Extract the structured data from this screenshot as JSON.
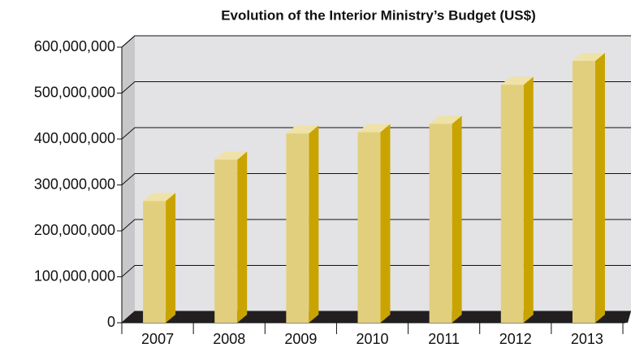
{
  "chart_data": {
    "type": "bar3d",
    "title": "Evolution of the Interior Ministry’s Budget (US$)",
    "categories": [
      "2007",
      "2008",
      "2009",
      "2010",
      "2011",
      "2012",
      "2013"
    ],
    "values": [
      265000000,
      355000000,
      412000000,
      415000000,
      433000000,
      518000000,
      570000000
    ],
    "color": "#e2cf7e",
    "ylim": [
      0,
      600000000
    ],
    "yticks": [
      0,
      {
        "value": 100000000,
        "label": "100,000,000"
      },
      {
        "value": 200000000,
        "label": "200,000,000"
      },
      {
        "value": 300000000,
        "label": "300,000,000"
      },
      {
        "value": 400000000,
        "label": "400,000,000"
      },
      {
        "value": 500000000,
        "label": "500,000,000"
      },
      {
        "value": 600000000,
        "label": "600,000,000"
      }
    ],
    "grid": true
  }
}
